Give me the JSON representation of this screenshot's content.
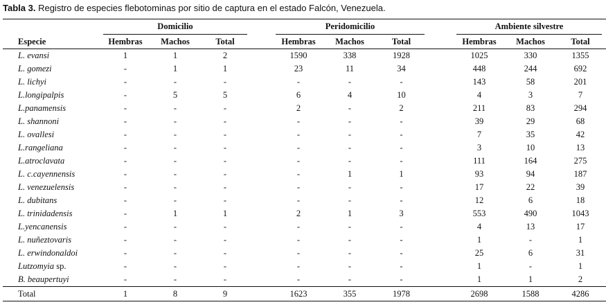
{
  "caption": {
    "label": "Tabla 3.",
    "text": "Registro de especies flebotominas por sitio de captura en el estado Falcón, Venezuela."
  },
  "groups": {
    "domicilio": "Domicilio",
    "peridomicilio": "Peridomicilio",
    "silvestre": "Ambiente silvestre"
  },
  "headers": {
    "especie": "Especie",
    "hembras": "Hembras",
    "machos": "Machos",
    "total": "Total"
  },
  "rows": [
    {
      "species": "L. evansi",
      "values": [
        "1",
        "1",
        "2",
        "1590",
        "338",
        "1928",
        "1025",
        "330",
        "1355"
      ]
    },
    {
      "species": "L. gomezi",
      "values": [
        "-",
        "1",
        "1",
        "23",
        "11",
        "34",
        "448",
        "244",
        "692"
      ]
    },
    {
      "species": "L. lichyi",
      "values": [
        "-",
        "-",
        "-",
        "-",
        "-",
        "-",
        "143",
        "58",
        "201"
      ]
    },
    {
      "species": "L.longipalpis",
      "values": [
        "-",
        "5",
        "5",
        "6",
        "4",
        "10",
        "4",
        "3",
        "7"
      ]
    },
    {
      "species": "L.panamensis",
      "values": [
        "-",
        "-",
        "-",
        "2",
        "-",
        "2",
        "211",
        "83",
        "294"
      ]
    },
    {
      "species": "L. shannoni",
      "values": [
        "-",
        "-",
        "-",
        "-",
        "-",
        "-",
        "39",
        "29",
        "68"
      ]
    },
    {
      "species": "L. ovallesi",
      "values": [
        "-",
        "-",
        "-",
        "-",
        "-",
        "-",
        "7",
        "35",
        "42"
      ]
    },
    {
      "species": "L.rangeliana",
      "values": [
        "-",
        "-",
        "-",
        "-",
        "-",
        "-",
        "3",
        "10",
        "13"
      ]
    },
    {
      "species": "L.atroclavata",
      "values": [
        "-",
        "-",
        "-",
        "-",
        "-",
        "-",
        "111",
        "164",
        "275"
      ]
    },
    {
      "species": "L. c.cayennensis",
      "values": [
        "-",
        "-",
        "-",
        "-",
        "1",
        "1",
        "93",
        "94",
        "187"
      ]
    },
    {
      "species": "L. venezuelensis",
      "values": [
        "-",
        "-",
        "-",
        "-",
        "-",
        "-",
        "17",
        "22",
        "39"
      ]
    },
    {
      "species": "L. dubitans",
      "values": [
        "-",
        "-",
        "-",
        "-",
        "-",
        "-",
        "12",
        "6",
        "18"
      ]
    },
    {
      "species": "L. trinidadensis",
      "values": [
        "-",
        "1",
        "1",
        "2",
        "1",
        "3",
        "553",
        "490",
        "1043"
      ]
    },
    {
      "species": "L.yencanensis",
      "values": [
        "-",
        "-",
        "-",
        "-",
        "-",
        "-",
        "4",
        "13",
        "17"
      ]
    },
    {
      "species": "L. nuñeztovaris",
      "values": [
        "-",
        "-",
        "-",
        "-",
        "-",
        "-",
        "1",
        "-",
        "1"
      ]
    },
    {
      "species": "L. erwindonaldoi",
      "values": [
        "-",
        "-",
        "-",
        "-",
        "-",
        "-",
        "25",
        "6",
        "31"
      ]
    },
    {
      "species": "Lutzomyia sp.",
      "values": [
        "-",
        "-",
        "-",
        "-",
        "-",
        "-",
        "1",
        "-",
        "1"
      ]
    },
    {
      "species": "B. beaupertuyi",
      "values": [
        "-",
        "-",
        "-",
        "-",
        "-",
        "-",
        "1",
        "1",
        "2"
      ]
    }
  ],
  "total_row": {
    "label": "Total",
    "values": [
      "1",
      "8",
      "9",
      "1623",
      "355",
      "1978",
      "2698",
      "1588",
      "4286"
    ]
  }
}
